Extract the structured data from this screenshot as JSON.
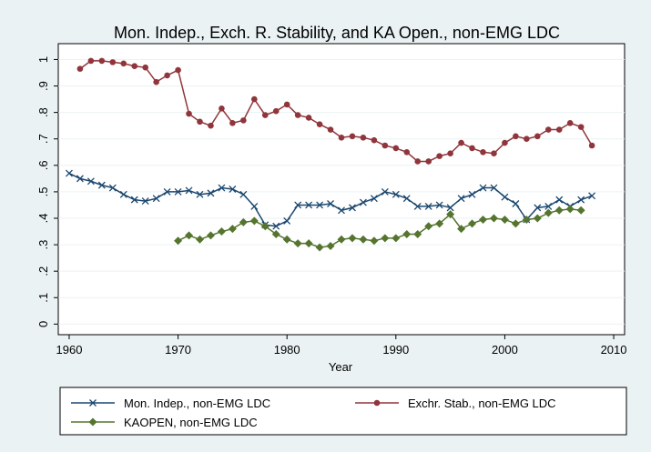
{
  "chart_data": {
    "type": "line",
    "title": "Mon. Indep., Exch. R. Stability, and KA Open., non-EMG LDC",
    "x_label": "Year",
    "x": [
      1960,
      1961,
      1962,
      1963,
      1964,
      1965,
      1966,
      1967,
      1968,
      1969,
      1970,
      1971,
      1972,
      1973,
      1974,
      1975,
      1976,
      1977,
      1978,
      1979,
      1980,
      1981,
      1982,
      1983,
      1984,
      1985,
      1986,
      1987,
      1988,
      1989,
      1990,
      1991,
      1992,
      1993,
      1994,
      1995,
      1996,
      1997,
      1998,
      1999,
      2000,
      2001,
      2002,
      2003,
      2004,
      2005,
      2006,
      2007,
      2008
    ],
    "series": [
      {
        "name": "Mon. Indep., non-EMG LDC",
        "color": "#1a476f",
        "marker": "x",
        "values": [
          0.57,
          0.55,
          0.54,
          0.525,
          0.515,
          0.49,
          0.47,
          0.465,
          0.475,
          0.5,
          0.5,
          0.505,
          0.49,
          0.495,
          0.515,
          0.51,
          0.49,
          0.445,
          0.375,
          0.37,
          0.39,
          0.45,
          0.45,
          0.45,
          0.455,
          0.43,
          0.44,
          0.46,
          0.475,
          0.5,
          0.49,
          0.475,
          0.445,
          0.445,
          0.45,
          0.44,
          0.475,
          0.49,
          0.515,
          0.515,
          0.48,
          0.455,
          0.395,
          0.44,
          0.445,
          0.47,
          0.445,
          0.47,
          0.485
        ]
      },
      {
        "name": "Exchr. Stab., non-EMG LDC",
        "color": "#90353b",
        "marker": "circle",
        "values": [
          null,
          0.965,
          0.995,
          0.995,
          0.99,
          0.985,
          0.975,
          0.97,
          0.915,
          0.94,
          0.96,
          0.795,
          0.765,
          0.75,
          0.815,
          0.76,
          0.77,
          0.85,
          0.79,
          0.805,
          0.83,
          0.79,
          0.78,
          0.755,
          0.735,
          0.705,
          0.71,
          0.705,
          0.695,
          0.675,
          0.665,
          0.65,
          0.615,
          0.615,
          0.635,
          0.645,
          0.685,
          0.665,
          0.65,
          0.645,
          0.685,
          0.71,
          0.7,
          0.71,
          0.735,
          0.735,
          0.76,
          0.745,
          0.675
        ]
      },
      {
        "name": "KAOPEN, non-EMG LDC",
        "color": "#55752f",
        "marker": "diamond",
        "values": [
          null,
          null,
          null,
          null,
          null,
          null,
          null,
          null,
          null,
          null,
          0.315,
          0.335,
          0.32,
          0.335,
          0.35,
          0.36,
          0.385,
          0.39,
          0.37,
          0.34,
          0.32,
          0.305,
          0.305,
          0.29,
          0.295,
          0.32,
          0.325,
          0.32,
          0.315,
          0.325,
          0.325,
          0.34,
          0.34,
          0.37,
          0.38,
          0.415,
          0.36,
          0.38,
          0.395,
          0.4,
          0.395,
          0.38,
          0.395,
          0.4,
          0.42,
          0.43,
          0.435,
          0.43,
          null
        ]
      }
    ],
    "xlim": [
      1959,
      2011
    ],
    "xticks": [
      1960,
      1970,
      1980,
      1990,
      2000,
      2010
    ],
    "ylim": [
      -0.04,
      1.06
    ],
    "yticks": [
      0,
      {
        "value": 0.1,
        "label": ".1"
      },
      {
        "value": 0.2,
        "label": ".2"
      },
      {
        "value": 0.3,
        "label": ".3"
      },
      {
        "value": 0.4,
        "label": ".4"
      },
      {
        "value": 0.5,
        "label": ".5"
      },
      {
        "value": 0.6,
        "label": ".6"
      },
      {
        "value": 0.7,
        "label": ".7"
      },
      {
        "value": 0.8,
        "label": ".8"
      },
      {
        "value": 0.9,
        "label": ".9"
      },
      1
    ],
    "grid": true,
    "legend": "bottom"
  }
}
